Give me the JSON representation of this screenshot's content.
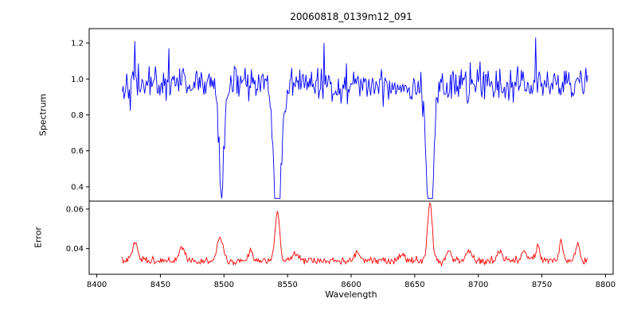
{
  "chart_data": {
    "type": "line",
    "title": "20060818_0139m12_091",
    "xlabel": "Wavelength",
    "xlim": [
      8394,
      8806
    ],
    "xticks": [
      8400,
      8450,
      8500,
      8550,
      8600,
      8650,
      8700,
      8750,
      8800
    ],
    "xtick_labels": [
      "8400",
      "8450",
      "8500",
      "8550",
      "8600",
      "8650",
      "8700",
      "8750",
      "8800"
    ],
    "x_data_range": [
      8420,
      8786
    ],
    "n_points": 520,
    "grid": false,
    "legend": "none",
    "panels": [
      {
        "name": "spectrum",
        "ylabel": "Spectrum",
        "ylim": [
          0.32,
          1.28
        ],
        "yticks": [
          0.4,
          0.6,
          0.8,
          1.0,
          1.2
        ],
        "ytick_labels": [
          "0.4",
          "0.6",
          "0.8",
          "1.0",
          "1.2"
        ],
        "color": "#0000ff",
        "baseline": 0.97,
        "noise_sigma": 0.046,
        "seed": 42,
        "absorption_lines": [
          {
            "center": 8498.0,
            "depth": 0.47,
            "width": 2.0
          },
          {
            "center": 8542.1,
            "depth": 0.62,
            "width": 3.0
          },
          {
            "center": 8662.1,
            "depth": 0.62,
            "width": 2.6
          }
        ],
        "spikes": [
          {
            "x": 8430,
            "y": 1.21
          },
          {
            "x": 8457,
            "y": 1.17
          },
          {
            "x": 8579,
            "y": 1.2
          },
          {
            "x": 8745,
            "y": 1.23
          }
        ]
      },
      {
        "name": "error",
        "ylabel": "Error",
        "ylim": [
          0.027,
          0.064
        ],
        "yticks": [
          0.04,
          0.06
        ],
        "ytick_labels": [
          "0.04",
          "0.06"
        ],
        "color": "#ff0000",
        "baseline": 0.0335,
        "noise_sigma": 0.0008,
        "seed": 7,
        "peaks": [
          {
            "center": 8430,
            "height": 0.009,
            "width": 2.0
          },
          {
            "center": 8467,
            "height": 0.007,
            "width": 2.0
          },
          {
            "center": 8497,
            "height": 0.011,
            "width": 2.5
          },
          {
            "center": 8521,
            "height": 0.004,
            "width": 2.0
          },
          {
            "center": 8542,
            "height": 0.024,
            "width": 1.8
          },
          {
            "center": 8556,
            "height": 0.004,
            "width": 2.0
          },
          {
            "center": 8605,
            "height": 0.004,
            "width": 2.0
          },
          {
            "center": 8640,
            "height": 0.003,
            "width": 2.0
          },
          {
            "center": 8662,
            "height": 0.029,
            "width": 1.8
          },
          {
            "center": 8677,
            "height": 0.005,
            "width": 2.0
          },
          {
            "center": 8692,
            "height": 0.005,
            "width": 2.0
          },
          {
            "center": 8717,
            "height": 0.004,
            "width": 2.0
          },
          {
            "center": 8736,
            "height": 0.004,
            "width": 2.0
          },
          {
            "center": 8747,
            "height": 0.007,
            "width": 1.5
          },
          {
            "center": 8765,
            "height": 0.009,
            "width": 1.5
          },
          {
            "center": 8778,
            "height": 0.009,
            "width": 1.5
          }
        ]
      }
    ],
    "axis_color": "#000000",
    "background_color": "#ffffff"
  }
}
